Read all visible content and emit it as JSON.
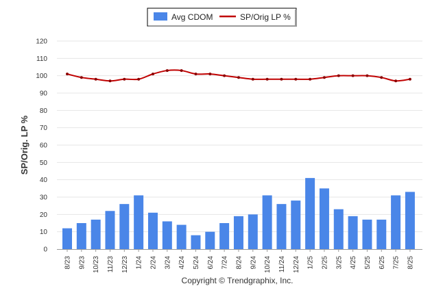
{
  "chart_data": {
    "type": "bar",
    "categories": [
      "8/23",
      "9/23",
      "10/23",
      "11/23",
      "12/23",
      "1/24",
      "2/24",
      "3/24",
      "4/24",
      "5/24",
      "6/24",
      "7/24",
      "8/24",
      "9/24",
      "10/24",
      "11/24",
      "12/24",
      "1/25",
      "2/25",
      "3/25",
      "4/25",
      "5/25",
      "6/25",
      "7/25",
      "8/25"
    ],
    "series": [
      {
        "name": "Avg CDOM",
        "type": "bar",
        "color": "#4a86e8",
        "values": [
          12,
          15,
          17,
          22,
          26,
          31,
          21,
          16,
          14,
          8,
          10,
          15,
          19,
          20,
          31,
          26,
          28,
          41,
          35,
          23,
          19,
          17,
          17,
          31,
          33
        ]
      },
      {
        "name": "SP/Orig LP %",
        "type": "line",
        "color": "#c00000",
        "values": [
          101,
          99,
          98,
          97,
          98,
          98,
          101,
          103,
          103,
          101,
          101,
          100,
          99,
          98,
          98,
          98,
          98,
          98,
          99,
          100,
          100,
          100,
          99,
          97,
          98
        ]
      }
    ],
    "ylabel": "SP/Orig. LP %",
    "xlabel": "",
    "ylim": [
      0,
      120
    ],
    "yticks": [
      0,
      10,
      20,
      30,
      40,
      50,
      60,
      70,
      80,
      90,
      100,
      110,
      120
    ],
    "grid": true,
    "legend_position": "top-center"
  },
  "footer": {
    "copyright": "Copyright © Trendgraphix, Inc."
  }
}
